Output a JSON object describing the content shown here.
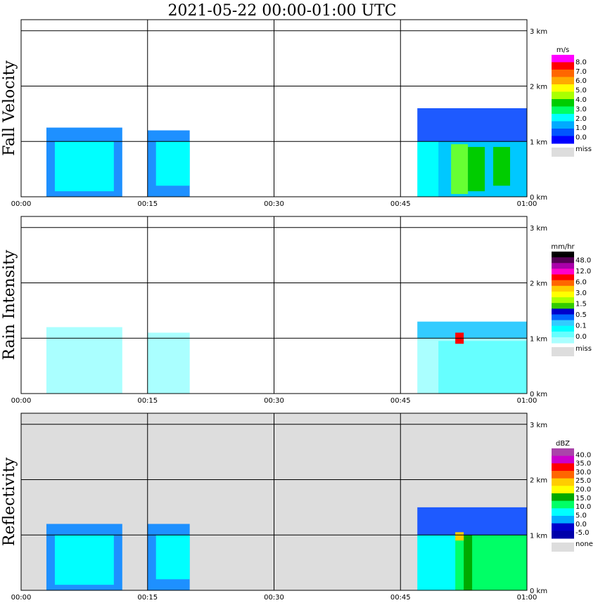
{
  "chart_data": {
    "type": "heatmap",
    "title": "2021-05-22   00:00-01:00 UTC",
    "x_ticks": [
      "00:00",
      "00:15",
      "00:30",
      "00:45",
      "01:00"
    ],
    "x_range_minutes": [
      0,
      60
    ],
    "y_ticks": [
      "0 km",
      "1 km",
      "2 km",
      "3 km"
    ],
    "y_range_km": [
      0,
      3.2
    ],
    "grid": true,
    "panels": [
      {
        "name": "Fall Velocity",
        "background": "#ffffff",
        "colorbar": {
          "unit": "m/s",
          "labels": [
            "8.0",
            "7.0",
            "6.0",
            "5.0",
            "4.0",
            "3.0",
            "2.0",
            "1.0",
            "0.0"
          ],
          "colors": [
            "#ff00ff",
            "#ff0000",
            "#ff6600",
            "#ffaa00",
            "#ffff00",
            "#aaff00",
            "#00cc00",
            "#00ff66",
            "#00ffff",
            "#00aaff",
            "#0055ff",
            "#0000ff"
          ],
          "missing_label": "miss",
          "missing_color": "#dddddd"
        },
        "features": [
          {
            "t0": 3,
            "t1": 12,
            "h0": 0.0,
            "h1": 1.25,
            "color": "#1e90ff"
          },
          {
            "t0": 4,
            "t1": 11,
            "h0": 0.1,
            "h1": 1.0,
            "color": "#00ffff"
          },
          {
            "t0": 15,
            "t1": 20,
            "h0": 0.0,
            "h1": 1.2,
            "color": "#1e90ff"
          },
          {
            "t0": 16,
            "t1": 20,
            "h0": 0.2,
            "h1": 1.0,
            "color": "#00ffff"
          },
          {
            "t0": 47,
            "t1": 60,
            "h0": 0.0,
            "h1": 1.0,
            "color": "#00ffff"
          },
          {
            "t0": 49.5,
            "t1": 60,
            "h0": 0.0,
            "h1": 1.0,
            "color": "#00c8ff"
          },
          {
            "t0": 51,
            "t1": 53,
            "h0": 0.05,
            "h1": 0.95,
            "color": "#66ff33"
          },
          {
            "t0": 53,
            "t1": 55,
            "h0": 0.1,
            "h1": 0.9,
            "color": "#00cc00"
          },
          {
            "t0": 56,
            "t1": 58,
            "h0": 0.2,
            "h1": 0.9,
            "color": "#00cc00"
          },
          {
            "t0": 47,
            "t1": 60,
            "h0": 1.0,
            "h1": 1.6,
            "color": "#1e5aff"
          }
        ]
      },
      {
        "name": "Rain Intensity",
        "background": "#ffffff",
        "colorbar": {
          "unit": "mm/hr",
          "labels": [
            "48.0",
            "12.0",
            "6.0",
            "3.0",
            "1.5",
            "0.5",
            "0.1",
            "0.0"
          ],
          "colors": [
            "#000000",
            "#550055",
            "#aa00aa",
            "#ff00cc",
            "#ff0000",
            "#ff6600",
            "#ffcc00",
            "#ffff00",
            "#aaff00",
            "#33cc00",
            "#0000cc",
            "#0066ff",
            "#33ccff",
            "#00ffff",
            "#66ffff",
            "#aaffff"
          ],
          "missing_label": "miss",
          "missing_color": "#dddddd"
        },
        "features": [
          {
            "t0": 3,
            "t1": 12,
            "h0": 0.0,
            "h1": 1.2,
            "color": "#aaffff"
          },
          {
            "t0": 15,
            "t1": 20,
            "h0": 0.0,
            "h1": 1.1,
            "color": "#aaffff"
          },
          {
            "t0": 47,
            "t1": 60,
            "h0": 0.0,
            "h1": 1.0,
            "color": "#aaffff"
          },
          {
            "t0": 49.5,
            "t1": 60,
            "h0": 0.0,
            "h1": 0.95,
            "color": "#66ffff"
          },
          {
            "t0": 47,
            "t1": 60,
            "h0": 1.0,
            "h1": 1.3,
            "color": "#33ccff"
          },
          {
            "t0": 51.5,
            "t1": 52.5,
            "h0": 0.9,
            "h1": 1.1,
            "color": "#ff0000"
          }
        ]
      },
      {
        "name": "Reflectivity",
        "background": "#dddddd",
        "colorbar": {
          "unit": "dBZ",
          "labels": [
            "40.0",
            "35.0",
            "30.0",
            "25.0",
            "20.0",
            "15.0",
            "10.0",
            "5.0",
            "0.0",
            "-5.0"
          ],
          "colors": [
            "#aa44aa",
            "#cc00cc",
            "#ff0000",
            "#ff6600",
            "#ffcc00",
            "#ffff00",
            "#00aa00",
            "#00ff66",
            "#00ffff",
            "#00aaff",
            "#0000cc",
            "#0000aa"
          ],
          "missing_label": "none",
          "missing_color": "#dddddd"
        },
        "features": [
          {
            "t0": 3,
            "t1": 12,
            "h0": 0.0,
            "h1": 1.2,
            "color": "#1e90ff"
          },
          {
            "t0": 4,
            "t1": 11,
            "h0": 0.1,
            "h1": 1.0,
            "color": "#00ffff"
          },
          {
            "t0": 15,
            "t1": 20,
            "h0": 0.0,
            "h1": 1.2,
            "color": "#1e90ff"
          },
          {
            "t0": 16,
            "t1": 20,
            "h0": 0.2,
            "h1": 1.0,
            "color": "#00ffff"
          },
          {
            "t0": 47,
            "t1": 60,
            "h0": 0.0,
            "h1": 1.0,
            "color": "#00ffff"
          },
          {
            "t0": 51.5,
            "t1": 60,
            "h0": 0.0,
            "h1": 1.0,
            "color": "#00ff66"
          },
          {
            "t0": 52.5,
            "t1": 53.5,
            "h0": 0.0,
            "h1": 1.0,
            "color": "#00aa00"
          },
          {
            "t0": 47,
            "t1": 60,
            "h0": 1.0,
            "h1": 1.5,
            "color": "#1e5aff"
          },
          {
            "t0": 51.5,
            "t1": 52.5,
            "h0": 0.9,
            "h1": 1.05,
            "color": "#ffcc00"
          }
        ]
      }
    ]
  }
}
